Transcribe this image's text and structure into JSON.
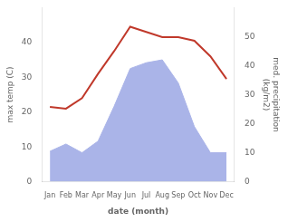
{
  "chart_data": {
    "type": "line",
    "xlabel": "date (month)",
    "ylabel": "max temp (C)",
    "y2label": "med. precipitation\n(kg/m2)",
    "categories": [
      "Jan",
      "Feb",
      "Mar",
      "Apr",
      "May",
      "Jun",
      "Jul",
      "Aug",
      "Sep",
      "Oct",
      "Nov",
      "Dec"
    ],
    "series": [
      {
        "type": "area",
        "axis": "y2",
        "color": "#aab4e8",
        "values": [
          10.5,
          13.0,
          10.0,
          14.0,
          26.0,
          39.0,
          41.0,
          42.0,
          34.0,
          19.0,
          10.0,
          10.0
        ]
      },
      {
        "type": "line",
        "color": "#c0392b",
        "values": [
          21.5,
          21.0,
          24.0,
          31.0,
          37.5,
          44.5,
          43.0,
          41.5,
          41.5,
          40.5,
          36.0,
          29.5
        ]
      }
    ],
    "ylim": [
      0,
      50
    ],
    "yticks": [
      0,
      10,
      20,
      30,
      40
    ],
    "y2lim": [
      0,
      60
    ],
    "y2ticks": [
      0,
      10,
      20,
      30,
      40,
      50
    ],
    "grid": false
  }
}
